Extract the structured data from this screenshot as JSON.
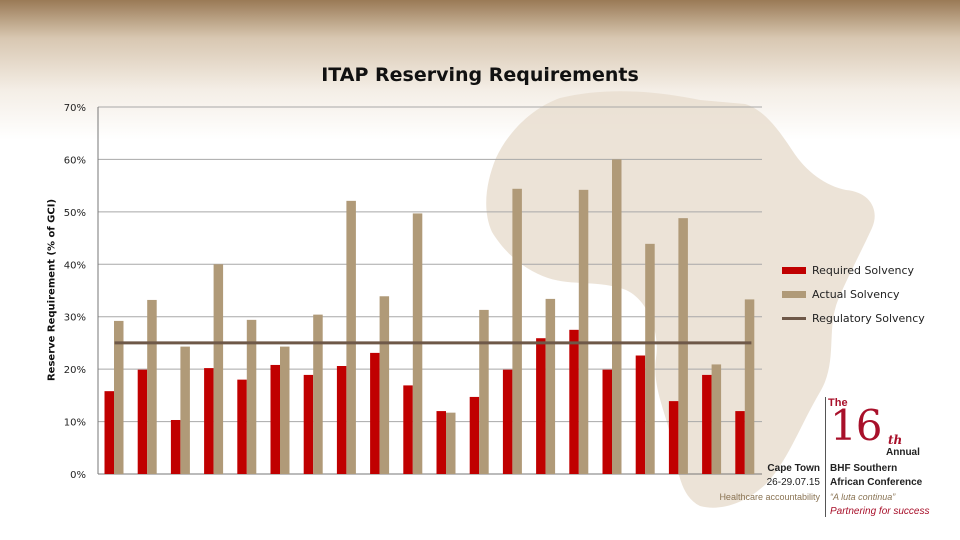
{
  "chart_data": {
    "type": "bar",
    "title": "ITAP Reserving Requirements",
    "ylabel": "Reserve Requirement (% of GCI)",
    "xlabel": "",
    "ylim": [
      0,
      70
    ],
    "yticks": [
      "0%",
      "10%",
      "20%",
      "30%",
      "40%",
      "50%",
      "60%",
      "70%"
    ],
    "grid": true,
    "legend_position": "right",
    "series": [
      {
        "name": "Required Solvency",
        "color": "#c00000",
        "values": [
          15.8,
          19.9,
          10.3,
          20.2,
          18.0,
          20.8,
          18.9,
          20.6,
          23.1,
          16.9,
          12.0,
          14.7,
          19.9,
          25.9,
          27.5,
          19.9,
          22.6,
          13.9,
          18.9,
          12.0
        ]
      },
      {
        "name": "Actual Solvency",
        "color": "#b09a78",
        "values": [
          29.2,
          33.2,
          24.3,
          40.0,
          29.4,
          24.3,
          30.4,
          52.1,
          33.9,
          49.7,
          11.7,
          31.3,
          54.4,
          33.4,
          54.2,
          60.0,
          43.9,
          48.8,
          20.9,
          33.3
        ]
      }
    ],
    "reference_line": {
      "name": "Regulatory Solvency",
      "value": 25,
      "color": "#6e5848"
    }
  },
  "branding": {
    "the": "The",
    "number": "16",
    "ordinal": "th",
    "annual": "Annual",
    "city": "Cape Town",
    "dates": "26-29.07.15",
    "tagline": "Healthcare accountability",
    "name_line1": "BHF Southern",
    "name_line2": "African Conference",
    "motto": "“A luta continua”",
    "slogan": "Partnering for success"
  }
}
